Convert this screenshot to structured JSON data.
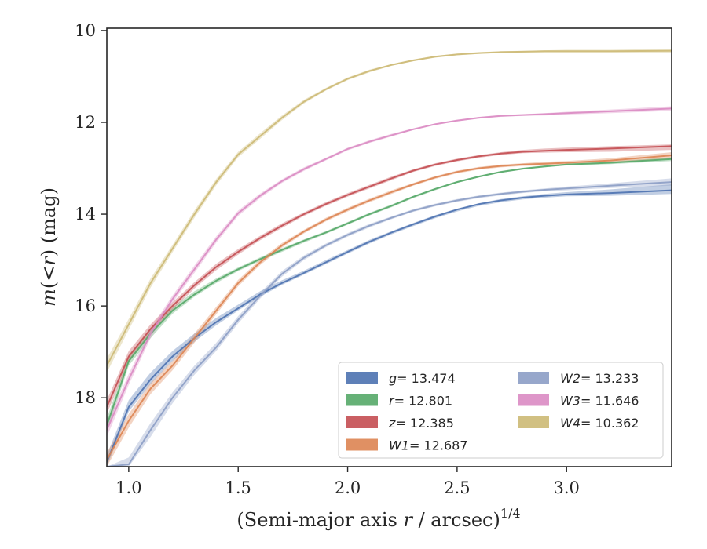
{
  "chart_data": {
    "type": "line",
    "title": "",
    "xlabel_main": "(Semi-major axis ",
    "xlabel_var": "r",
    "xlabel_tail": " / arcsec)",
    "xlabel_sup": "1/4",
    "ylabel_var1": "m",
    "ylabel_mid": "(<",
    "ylabel_var2": "r",
    "ylabel_tail": ") (mag)",
    "xlim": [
      0.9,
      3.48
    ],
    "ylim": [
      19.5,
      9.95
    ],
    "y_inverted": true,
    "xticks": [
      "1.0",
      "1.5",
      "2.0",
      "2.5",
      "3.0"
    ],
    "xtick_values": [
      1.0,
      1.5,
      2.0,
      2.5,
      3.0
    ],
    "yticks": [
      "10",
      "12",
      "14",
      "16",
      "18"
    ],
    "ytick_values": [
      10,
      12,
      14,
      16,
      18
    ],
    "grid": false,
    "legend_position": "lower-right",
    "legend_columns": 2,
    "series": [
      {
        "band": "g",
        "value_text": "= 13.474",
        "color": "#4c72b0",
        "x": [
          0.9,
          1.0,
          1.1,
          1.2,
          1.3,
          1.4,
          1.5,
          1.6,
          1.7,
          1.8,
          1.9,
          2.0,
          2.1,
          2.2,
          2.3,
          2.4,
          2.5,
          2.6,
          2.7,
          2.8,
          2.9,
          3.0,
          3.2,
          3.48
        ],
        "y": [
          19.4,
          18.2,
          17.6,
          17.1,
          16.7,
          16.35,
          16.05,
          15.75,
          15.5,
          15.28,
          15.05,
          14.82,
          14.6,
          14.4,
          14.22,
          14.05,
          13.9,
          13.78,
          13.7,
          13.64,
          13.6,
          13.57,
          13.54,
          13.48
        ],
        "y_upper": [
          19.25,
          18.05,
          17.45,
          16.98,
          16.6,
          16.26,
          15.97,
          15.68,
          15.44,
          15.23,
          15.0,
          14.78,
          14.56,
          14.37,
          14.19,
          14.02,
          13.88,
          13.76,
          13.67,
          13.61,
          13.56,
          13.52,
          13.46,
          13.35
        ],
        "y_lower": [
          19.5,
          18.3,
          17.7,
          17.2,
          16.78,
          16.42,
          16.1,
          15.8,
          15.54,
          15.32,
          15.09,
          14.86,
          14.64,
          14.44,
          14.26,
          14.09,
          13.94,
          13.82,
          13.74,
          13.68,
          13.64,
          13.61,
          13.6,
          13.56
        ]
      },
      {
        "band": "r",
        "value_text": "= 12.801",
        "color": "#55a868",
        "x": [
          0.9,
          1.0,
          1.1,
          1.2,
          1.3,
          1.4,
          1.5,
          1.6,
          1.7,
          1.8,
          1.9,
          2.0,
          2.1,
          2.2,
          2.3,
          2.4,
          2.5,
          2.6,
          2.7,
          2.8,
          2.9,
          3.0,
          3.2,
          3.48
        ],
        "y": [
          18.6,
          17.2,
          16.6,
          16.1,
          15.75,
          15.45,
          15.2,
          14.98,
          14.78,
          14.58,
          14.4,
          14.2,
          14.0,
          13.82,
          13.62,
          13.45,
          13.3,
          13.18,
          13.08,
          13.01,
          12.96,
          12.92,
          12.88,
          12.8
        ],
        "y_upper": [
          18.45,
          17.08,
          16.5,
          16.03,
          15.68,
          15.4,
          15.16,
          14.94,
          14.74,
          14.55,
          14.37,
          14.17,
          13.97,
          13.79,
          13.6,
          13.43,
          13.28,
          13.16,
          13.06,
          12.99,
          12.94,
          12.9,
          12.85,
          12.76
        ],
        "y_lower": [
          18.75,
          17.3,
          16.7,
          16.17,
          15.8,
          15.5,
          15.24,
          15.02,
          14.82,
          14.62,
          14.43,
          14.23,
          14.03,
          13.85,
          13.65,
          13.48,
          13.32,
          13.2,
          13.1,
          13.03,
          12.98,
          12.94,
          12.91,
          12.84
        ]
      },
      {
        "band": "z",
        "value_text": "= 12.385",
        "color": "#c44e52",
        "x": [
          0.9,
          1.0,
          1.1,
          1.2,
          1.3,
          1.4,
          1.5,
          1.6,
          1.7,
          1.8,
          1.9,
          2.0,
          2.1,
          2.2,
          2.3,
          2.4,
          2.5,
          2.6,
          2.7,
          2.8,
          2.9,
          3.0,
          3.2,
          3.48
        ],
        "y": [
          18.2,
          17.1,
          16.5,
          16.0,
          15.55,
          15.15,
          14.82,
          14.52,
          14.25,
          14.0,
          13.78,
          13.58,
          13.4,
          13.22,
          13.05,
          12.92,
          12.82,
          12.74,
          12.68,
          12.64,
          12.62,
          12.6,
          12.57,
          12.52
        ],
        "y_upper": [
          18.05,
          16.98,
          16.4,
          15.92,
          15.48,
          15.08,
          14.76,
          14.47,
          14.2,
          13.96,
          13.74,
          13.54,
          13.36,
          13.18,
          13.02,
          12.89,
          12.79,
          12.71,
          12.65,
          12.6,
          12.57,
          12.55,
          12.52,
          12.48
        ],
        "y_lower": [
          18.35,
          17.22,
          16.6,
          16.08,
          15.62,
          15.22,
          14.88,
          14.57,
          14.3,
          14.04,
          13.82,
          13.62,
          13.44,
          13.26,
          13.08,
          12.95,
          12.85,
          12.77,
          12.71,
          12.67,
          12.66,
          12.65,
          12.64,
          12.6
        ]
      },
      {
        "band": "W1",
        "value_text": "= 12.687",
        "color": "#dd8452",
        "x": [
          0.9,
          1.0,
          1.1,
          1.2,
          1.3,
          1.4,
          1.5,
          1.6,
          1.7,
          1.8,
          1.9,
          2.0,
          2.1,
          2.2,
          2.3,
          2.4,
          2.5,
          2.6,
          2.7,
          2.8,
          2.9,
          3.0,
          3.2,
          3.48
        ],
        "y": [
          19.35,
          18.5,
          17.8,
          17.3,
          16.7,
          16.1,
          15.5,
          15.05,
          14.68,
          14.38,
          14.12,
          13.9,
          13.7,
          13.52,
          13.35,
          13.2,
          13.08,
          13.0,
          12.95,
          12.92,
          12.9,
          12.88,
          12.83,
          12.72
        ],
        "y_upper": [
          19.2,
          18.35,
          17.68,
          17.2,
          16.6,
          16.02,
          15.43,
          14.99,
          14.63,
          14.34,
          14.08,
          13.86,
          13.66,
          13.48,
          13.32,
          13.17,
          13.05,
          12.97,
          12.92,
          12.89,
          12.86,
          12.84,
          12.78,
          12.65
        ],
        "y_lower": [
          19.5,
          18.65,
          17.92,
          17.4,
          16.8,
          16.18,
          15.57,
          15.11,
          14.73,
          14.42,
          14.16,
          13.94,
          13.74,
          13.56,
          13.38,
          13.23,
          13.11,
          13.03,
          12.98,
          12.95,
          12.94,
          12.92,
          12.88,
          12.79
        ]
      },
      {
        "band": "W2",
        "value_text": "= 13.233",
        "color": "#8c9dc5",
        "x": [
          0.9,
          1.0,
          1.1,
          1.2,
          1.3,
          1.4,
          1.5,
          1.6,
          1.7,
          1.8,
          1.9,
          2.0,
          2.1,
          2.2,
          2.3,
          2.4,
          2.5,
          2.6,
          2.7,
          2.8,
          2.9,
          3.0,
          3.2,
          3.48
        ],
        "y": [
          19.5,
          19.45,
          18.7,
          18.0,
          17.4,
          16.9,
          16.3,
          15.78,
          15.3,
          14.95,
          14.68,
          14.45,
          14.25,
          14.08,
          13.92,
          13.8,
          13.7,
          13.62,
          13.56,
          13.51,
          13.47,
          13.44,
          13.38,
          13.3
        ],
        "y_upper": [
          19.5,
          19.3,
          18.55,
          17.88,
          17.3,
          16.8,
          16.22,
          15.71,
          15.24,
          14.9,
          14.64,
          14.41,
          14.21,
          14.05,
          13.89,
          13.77,
          13.67,
          13.59,
          13.53,
          13.48,
          13.44,
          13.4,
          13.33,
          13.22
        ],
        "y_lower": [
          19.5,
          19.5,
          18.85,
          18.12,
          17.5,
          16.98,
          16.38,
          15.84,
          15.36,
          15.0,
          14.72,
          14.49,
          14.29,
          14.11,
          13.95,
          13.83,
          13.73,
          13.65,
          13.59,
          13.54,
          13.5,
          13.48,
          13.43,
          13.38
        ]
      },
      {
        "band": "W3",
        "value_text": "= 11.646",
        "color": "#da8bc3",
        "x": [
          0.9,
          1.0,
          1.1,
          1.2,
          1.3,
          1.4,
          1.5,
          1.6,
          1.7,
          1.8,
          1.9,
          2.0,
          2.1,
          2.2,
          2.3,
          2.4,
          2.5,
          2.6,
          2.7,
          2.8,
          2.9,
          3.0,
          3.2,
          3.48
        ],
        "y": [
          18.7,
          17.6,
          16.6,
          15.85,
          15.2,
          14.55,
          13.98,
          13.6,
          13.28,
          13.02,
          12.8,
          12.58,
          12.42,
          12.28,
          12.15,
          12.04,
          11.96,
          11.9,
          11.86,
          11.84,
          11.82,
          11.8,
          11.76,
          11.7
        ],
        "y_upper": [
          18.55,
          17.48,
          16.5,
          15.77,
          15.12,
          14.48,
          13.92,
          13.55,
          13.24,
          12.98,
          12.77,
          12.55,
          12.39,
          12.25,
          12.13,
          12.02,
          11.94,
          11.88,
          11.84,
          11.82,
          11.8,
          11.77,
          11.72,
          11.65
        ],
        "y_lower": [
          18.85,
          17.72,
          16.7,
          15.93,
          15.28,
          14.62,
          14.04,
          13.65,
          13.32,
          13.06,
          12.83,
          12.61,
          12.45,
          12.31,
          12.17,
          12.06,
          11.98,
          11.92,
          11.88,
          11.86,
          11.85,
          11.83,
          11.8,
          11.75
        ]
      },
      {
        "band": "W4",
        "value_text": "= 10.362",
        "color": "#ccb974",
        "x": [
          0.9,
          1.0,
          1.1,
          1.2,
          1.3,
          1.4,
          1.5,
          1.6,
          1.7,
          1.8,
          1.9,
          2.0,
          2.1,
          2.2,
          2.3,
          2.4,
          2.5,
          2.6,
          2.7,
          2.8,
          2.9,
          3.0,
          3.2,
          3.48
        ],
        "y": [
          17.3,
          16.4,
          15.5,
          14.75,
          14.0,
          13.3,
          12.7,
          12.3,
          11.9,
          11.55,
          11.28,
          11.05,
          10.88,
          10.75,
          10.65,
          10.57,
          10.52,
          10.49,
          10.47,
          10.46,
          10.45,
          10.45,
          10.45,
          10.44
        ],
        "y_upper": [
          17.15,
          16.28,
          15.4,
          14.67,
          13.92,
          13.23,
          12.64,
          12.24,
          11.85,
          11.51,
          11.25,
          11.02,
          10.85,
          10.73,
          10.63,
          10.55,
          10.5,
          10.47,
          10.45,
          10.44,
          10.43,
          10.42,
          10.42,
          10.4
        ],
        "y_lower": [
          17.45,
          16.52,
          15.6,
          14.83,
          14.08,
          13.37,
          12.76,
          12.36,
          11.95,
          11.59,
          11.31,
          11.08,
          10.91,
          10.77,
          10.67,
          10.59,
          10.54,
          10.51,
          10.49,
          10.48,
          10.48,
          10.48,
          10.49,
          10.48
        ]
      }
    ]
  }
}
